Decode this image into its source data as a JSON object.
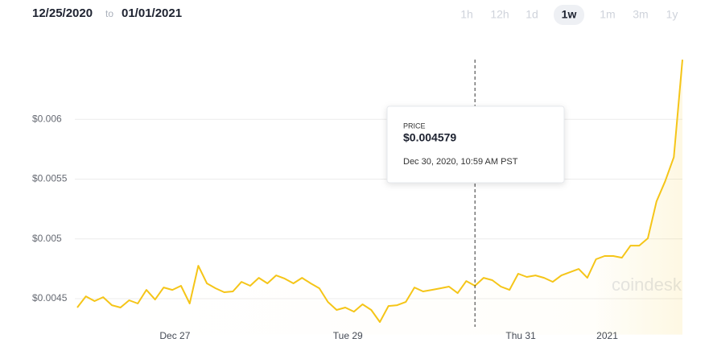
{
  "header": {
    "from": "12/25/2020",
    "separator": "to",
    "to": "01/01/2021",
    "ranges": [
      "1h",
      "12h",
      "1d",
      "1w",
      "1m",
      "3m",
      "1y"
    ],
    "selected_range": "1w"
  },
  "watermark": "coindesk",
  "chart_data": {
    "type": "line",
    "x": [
      0.87,
      0.97,
      1.07,
      1.17,
      1.27,
      1.37,
      1.47,
      1.57,
      1.67,
      1.77,
      1.87,
      1.97,
      2.07,
      2.17,
      2.27,
      2.37,
      2.47,
      2.57,
      2.67,
      2.77,
      2.87,
      2.97,
      3.07,
      3.17,
      3.27,
      3.37,
      3.47,
      3.57,
      3.67,
      3.77,
      3.87,
      3.97,
      4.07,
      4.17,
      4.27,
      4.37,
      4.47,
      4.57,
      4.67,
      4.77,
      4.87,
      4.97,
      5.07,
      5.17,
      5.27,
      5.37,
      5.47,
      5.57,
      5.67,
      5.77,
      5.87,
      5.97,
      6.07,
      6.17,
      6.27,
      6.37,
      6.47,
      6.57,
      6.67,
      6.77,
      6.87,
      6.97,
      7.07,
      7.17,
      7.27,
      7.37,
      7.47,
      7.57,
      7.67,
      7.77,
      7.87
    ],
    "series": [
      {
        "name": "Price",
        "color": "#f5c518",
        "values": [
          0.004426,
          0.00452,
          0.00448,
          0.004513,
          0.004446,
          0.004426,
          0.004487,
          0.00446,
          0.004574,
          0.004493,
          0.004594,
          0.004574,
          0.004608,
          0.00446,
          0.004776,
          0.004628,
          0.004587,
          0.004554,
          0.004561,
          0.004641,
          0.004608,
          0.004675,
          0.004628,
          0.004695,
          0.004668,
          0.004628,
          0.004675,
          0.004628,
          0.004587,
          0.004473,
          0.004406,
          0.004426,
          0.004392,
          0.004453,
          0.004406,
          0.004305,
          0.004439,
          0.004446,
          0.004473,
          0.004594,
          0.004561,
          0.004574,
          0.004587,
          0.004601,
          0.004547,
          0.004648,
          0.004608,
          0.004675,
          0.004655,
          0.004601,
          0.004574,
          0.004709,
          0.004682,
          0.004695,
          0.004675,
          0.004641,
          0.004695,
          0.004722,
          0.004749,
          0.004675,
          0.00483,
          0.004857,
          0.004857,
          0.004843,
          0.004944,
          0.004944,
          0.005005,
          0.005314,
          0.005482,
          0.005684,
          0.006499
        ]
      }
    ],
    "xlim": [
      0.87,
      7.87
    ],
    "xticks": [
      {
        "value": 2,
        "label": "Dec 27"
      },
      {
        "value": 4,
        "label": "Tue 29"
      },
      {
        "value": 6,
        "label": "Thu 31"
      },
      {
        "value": 7,
        "label": "2021"
      }
    ],
    "ylim": [
      0.0042,
      0.0065
    ],
    "yticks": [
      {
        "value": 0.0045,
        "label": "$0.0045"
      },
      {
        "value": 0.005,
        "label": "$0.005"
      },
      {
        "value": 0.0055,
        "label": "$0.0055"
      },
      {
        "value": 0.006,
        "label": "$0.006"
      }
    ],
    "grid": true,
    "tooltip": {
      "label": "PRICE",
      "value": 0.004579,
      "value_label": "$0.004579",
      "x": 5.47,
      "date": "Dec 30, 2020, 10:59 AM PST"
    }
  }
}
